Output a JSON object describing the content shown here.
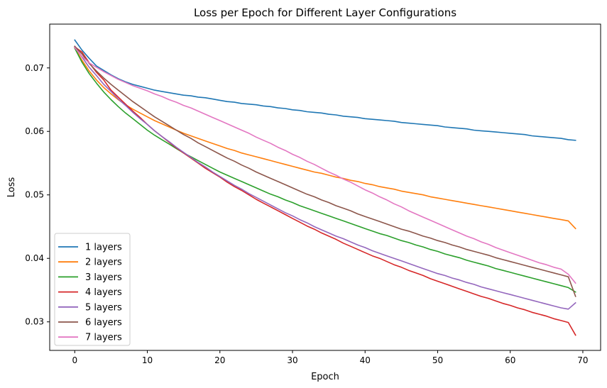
{
  "chart_data": {
    "type": "line",
    "title": "Loss per Epoch for Different Layer Configurations",
    "xlabel": "Epoch",
    "ylabel": "Loss",
    "xlim": [
      -3.45,
      72.45
    ],
    "ylim": [
      0.0255,
      0.0769
    ],
    "xticks": [
      0,
      10,
      20,
      30,
      40,
      50,
      60,
      70
    ],
    "yticks": [
      0.03,
      0.04,
      0.05,
      0.06,
      0.07
    ],
    "ytick_labels": [
      "0.03",
      "0.04",
      "0.05",
      "0.06",
      "0.07"
    ],
    "grid": false,
    "legend_position": "lower-left",
    "x": [
      0,
      1,
      2,
      3,
      4,
      5,
      6,
      7,
      8,
      9,
      10,
      11,
      12,
      13,
      14,
      15,
      16,
      17,
      18,
      19,
      20,
      21,
      22,
      23,
      24,
      25,
      26,
      27,
      28,
      29,
      30,
      31,
      32,
      33,
      34,
      35,
      36,
      37,
      38,
      39,
      40,
      41,
      42,
      43,
      44,
      45,
      46,
      47,
      48,
      49,
      50,
      51,
      52,
      53,
      54,
      55,
      56,
      57,
      58,
      59,
      60,
      61,
      62,
      63,
      64,
      65,
      66,
      67,
      68,
      69
    ],
    "series": [
      {
        "name": "1 layers",
        "color": "#1f77b4",
        "values": [
          0.0744,
          0.0728,
          0.0715,
          0.0703,
          0.0696,
          0.0689,
          0.0683,
          0.0678,
          0.0674,
          0.0671,
          0.0668,
          0.0665,
          0.0663,
          0.0661,
          0.0659,
          0.0657,
          0.0656,
          0.0654,
          0.0653,
          0.0651,
          0.0649,
          0.0647,
          0.0646,
          0.0644,
          0.0643,
          0.0642,
          0.064,
          0.0639,
          0.0637,
          0.0636,
          0.0634,
          0.0633,
          0.0631,
          0.063,
          0.0629,
          0.0627,
          0.0626,
          0.0624,
          0.0623,
          0.0622,
          0.062,
          0.0619,
          0.0618,
          0.0617,
          0.0616,
          0.0614,
          0.0613,
          0.0612,
          0.0611,
          0.061,
          0.0609,
          0.0607,
          0.0606,
          0.0605,
          0.0604,
          0.0602,
          0.0601,
          0.06,
          0.0599,
          0.0598,
          0.0597,
          0.0596,
          0.0595,
          0.0593,
          0.0592,
          0.0591,
          0.059,
          0.0589,
          0.0587,
          0.0586
        ]
      },
      {
        "name": "2 layers",
        "color": "#ff7f0e",
        "values": [
          0.0732,
          0.0712,
          0.0695,
          0.0681,
          0.0669,
          0.0659,
          0.065,
          0.0642,
          0.0635,
          0.0629,
          0.0623,
          0.0617,
          0.0612,
          0.0607,
          0.0602,
          0.0597,
          0.0593,
          0.0589,
          0.0585,
          0.0581,
          0.0577,
          0.0573,
          0.057,
          0.0566,
          0.0563,
          0.056,
          0.0557,
          0.0554,
          0.0551,
          0.0548,
          0.0545,
          0.0542,
          0.0539,
          0.0536,
          0.0534,
          0.0531,
          0.0528,
          0.0526,
          0.0523,
          0.0521,
          0.0518,
          0.0516,
          0.0513,
          0.0511,
          0.0509,
          0.0506,
          0.0504,
          0.0502,
          0.05,
          0.0497,
          0.0495,
          0.0493,
          0.0491,
          0.0489,
          0.0487,
          0.0485,
          0.0483,
          0.0481,
          0.0479,
          0.0477,
          0.0475,
          0.0473,
          0.0471,
          0.0469,
          0.0467,
          0.0465,
          0.0463,
          0.0461,
          0.0459,
          0.0447
        ]
      },
      {
        "name": "3 layers",
        "color": "#2ca02c",
        "values": [
          0.0731,
          0.0709,
          0.0691,
          0.0676,
          0.0662,
          0.065,
          0.0639,
          0.0629,
          0.062,
          0.0611,
          0.0602,
          0.0594,
          0.0587,
          0.058,
          0.0573,
          0.0566,
          0.056,
          0.0554,
          0.0548,
          0.0542,
          0.0536,
          0.0531,
          0.0526,
          0.0521,
          0.0516,
          0.0511,
          0.0506,
          0.0501,
          0.0497,
          0.0492,
          0.0488,
          0.0483,
          0.0479,
          0.0475,
          0.0471,
          0.0467,
          0.0463,
          0.0459,
          0.0455,
          0.0451,
          0.0447,
          0.0443,
          0.0439,
          0.0436,
          0.0432,
          0.0428,
          0.0425,
          0.0421,
          0.0418,
          0.0414,
          0.0411,
          0.0407,
          0.0404,
          0.0401,
          0.0397,
          0.0394,
          0.0391,
          0.0388,
          0.0384,
          0.0381,
          0.0378,
          0.0375,
          0.0372,
          0.0369,
          0.0366,
          0.0363,
          0.036,
          0.0357,
          0.0354,
          0.0347
        ]
      },
      {
        "name": "4 layers",
        "color": "#d62728",
        "values": [
          0.0733,
          0.0725,
          0.0708,
          0.0693,
          0.0681,
          0.0665,
          0.0654,
          0.0643,
          0.0632,
          0.0622,
          0.0611,
          0.0601,
          0.0592,
          0.0583,
          0.0574,
          0.0566,
          0.0558,
          0.055,
          0.0542,
          0.0535,
          0.0528,
          0.052,
          0.0513,
          0.0507,
          0.05,
          0.0493,
          0.0487,
          0.0481,
          0.0475,
          0.0469,
          0.0463,
          0.0457,
          0.0451,
          0.0446,
          0.044,
          0.0435,
          0.043,
          0.0424,
          0.0419,
          0.0414,
          0.0409,
          0.0404,
          0.04,
          0.0395,
          0.039,
          0.0386,
          0.0381,
          0.0377,
          0.0373,
          0.0368,
          0.0364,
          0.036,
          0.0356,
          0.0352,
          0.0348,
          0.0344,
          0.034,
          0.0337,
          0.0333,
          0.0329,
          0.0326,
          0.0322,
          0.0319,
          0.0315,
          0.0312,
          0.0309,
          0.0305,
          0.0302,
          0.0299,
          0.0279
        ]
      },
      {
        "name": "5 layers",
        "color": "#9467bd",
        "values": [
          0.0734,
          0.0717,
          0.0701,
          0.0688,
          0.0674,
          0.0663,
          0.0651,
          0.0641,
          0.063,
          0.062,
          0.0611,
          0.0601,
          0.0592,
          0.0584,
          0.0575,
          0.0567,
          0.0559,
          0.0551,
          0.0544,
          0.0536,
          0.0529,
          0.0522,
          0.0515,
          0.0509,
          0.0502,
          0.0496,
          0.049,
          0.0484,
          0.0478,
          0.0472,
          0.0467,
          0.0461,
          0.0456,
          0.045,
          0.0445,
          0.044,
          0.0435,
          0.0431,
          0.0426,
          0.0421,
          0.0417,
          0.0412,
          0.0408,
          0.0404,
          0.04,
          0.0396,
          0.0392,
          0.0388,
          0.0384,
          0.038,
          0.0376,
          0.0373,
          0.0369,
          0.0366,
          0.0362,
          0.0359,
          0.0355,
          0.0352,
          0.0349,
          0.0346,
          0.0343,
          0.034,
          0.0337,
          0.0334,
          0.0331,
          0.0328,
          0.0325,
          0.0322,
          0.032,
          0.033
        ]
      },
      {
        "name": "6 layers",
        "color": "#8c564b",
        "values": [
          0.0734,
          0.0722,
          0.0707,
          0.0695,
          0.0684,
          0.0674,
          0.0665,
          0.0656,
          0.0647,
          0.0639,
          0.0631,
          0.0623,
          0.0616,
          0.0609,
          0.0602,
          0.0595,
          0.0589,
          0.0582,
          0.0576,
          0.057,
          0.0564,
          0.0558,
          0.0553,
          0.0547,
          0.0542,
          0.0536,
          0.0531,
          0.0526,
          0.0521,
          0.0516,
          0.0511,
          0.0506,
          0.0501,
          0.0497,
          0.0492,
          0.0488,
          0.0483,
          0.0479,
          0.0475,
          0.047,
          0.0466,
          0.0462,
          0.0458,
          0.0454,
          0.045,
          0.0446,
          0.0443,
          0.0439,
          0.0435,
          0.0432,
          0.0428,
          0.0425,
          0.0421,
          0.0418,
          0.0414,
          0.0411,
          0.0408,
          0.0405,
          0.0401,
          0.0398,
          0.0395,
          0.0392,
          0.0389,
          0.0386,
          0.0383,
          0.038,
          0.0377,
          0.0374,
          0.0371,
          0.034
        ]
      },
      {
        "name": "7 layers",
        "color": "#e377c2",
        "values": [
          0.0732,
          0.0718,
          0.0708,
          0.0701,
          0.0694,
          0.0688,
          0.0682,
          0.0677,
          0.0672,
          0.0668,
          0.0664,
          0.0659,
          0.0655,
          0.065,
          0.0646,
          0.0641,
          0.0637,
          0.0632,
          0.0627,
          0.0622,
          0.0617,
          0.0612,
          0.0607,
          0.0602,
          0.0597,
          0.0591,
          0.0586,
          0.0581,
          0.0575,
          0.057,
          0.0564,
          0.0559,
          0.0553,
          0.0548,
          0.0542,
          0.0536,
          0.0531,
          0.0525,
          0.052,
          0.0514,
          0.0508,
          0.0503,
          0.0497,
          0.0492,
          0.0486,
          0.0481,
          0.0475,
          0.047,
          0.0465,
          0.046,
          0.0455,
          0.045,
          0.0445,
          0.044,
          0.0435,
          0.0431,
          0.0426,
          0.0422,
          0.0417,
          0.0413,
          0.0409,
          0.0405,
          0.0401,
          0.0397,
          0.0393,
          0.039,
          0.0386,
          0.0383,
          0.0375,
          0.0361
        ]
      }
    ]
  }
}
